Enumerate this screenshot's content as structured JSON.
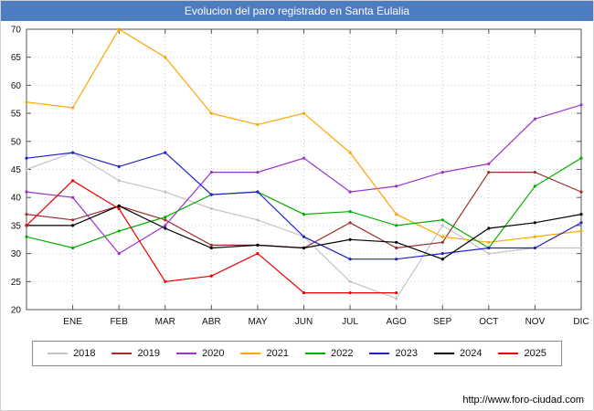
{
  "title": "Evolucion del paro registrado en Santa Eulalia",
  "footer": {
    "url": "http://www.foro-ciudad.com"
  },
  "colors": {
    "titlebar": "#4d7cc0",
    "grid": "#c9c9c9"
  },
  "chart_data": {
    "type": "line",
    "title": "Evolucion del paro registrado en Santa Eulalia",
    "xlabel": "",
    "ylabel": "",
    "ylim": [
      20,
      70
    ],
    "ytick_step": 5,
    "grid": true,
    "legend_position": "bottom",
    "categories": [
      "",
      "ENE",
      "FEB",
      "MAR",
      "ABR",
      "MAY",
      "JUN",
      "JUL",
      "AGO",
      "SEP",
      "OCT",
      "NOV",
      "DIC"
    ],
    "series": [
      {
        "name": "2018",
        "color": "#c4c4c4",
        "values": [
          45,
          48,
          43,
          41,
          38,
          36,
          33,
          25,
          22,
          35,
          30,
          31,
          31
        ]
      },
      {
        "name": "2019",
        "color": "#a02c2c",
        "values": [
          37,
          36,
          38.5,
          36,
          31.5,
          31.5,
          31,
          35.5,
          31,
          32,
          44.5,
          44.5,
          41
        ]
      },
      {
        "name": "2020",
        "color": "#9933cc",
        "values": [
          41,
          40,
          30,
          35,
          44.5,
          44.5,
          47,
          41,
          42,
          44.5,
          46,
          54,
          56.5
        ]
      },
      {
        "name": "2021",
        "color": "#ffa500",
        "values": [
          57,
          56,
          70,
          65,
          55,
          53,
          55,
          48,
          37,
          33,
          32,
          33,
          34
        ]
      },
      {
        "name": "2022",
        "color": "#00b000",
        "values": [
          33,
          31,
          34,
          36.5,
          40.5,
          41,
          37,
          37.5,
          35,
          36,
          31,
          42,
          47
        ]
      },
      {
        "name": "2023",
        "color": "#2222cc",
        "values": [
          47,
          48,
          45.5,
          48,
          40.5,
          41,
          33,
          29,
          29,
          30,
          31,
          31,
          35.5
        ]
      },
      {
        "name": "2024",
        "color": "#000000",
        "values": [
          35,
          35,
          38.5,
          34.5,
          31,
          31.5,
          31,
          32.5,
          32,
          29,
          34.5,
          35.5,
          37
        ]
      },
      {
        "name": "2025",
        "color": "#ee0000",
        "values": [
          35,
          43,
          38,
          25,
          26,
          30,
          23,
          23,
          23,
          null,
          null,
          null,
          null
        ]
      }
    ]
  }
}
